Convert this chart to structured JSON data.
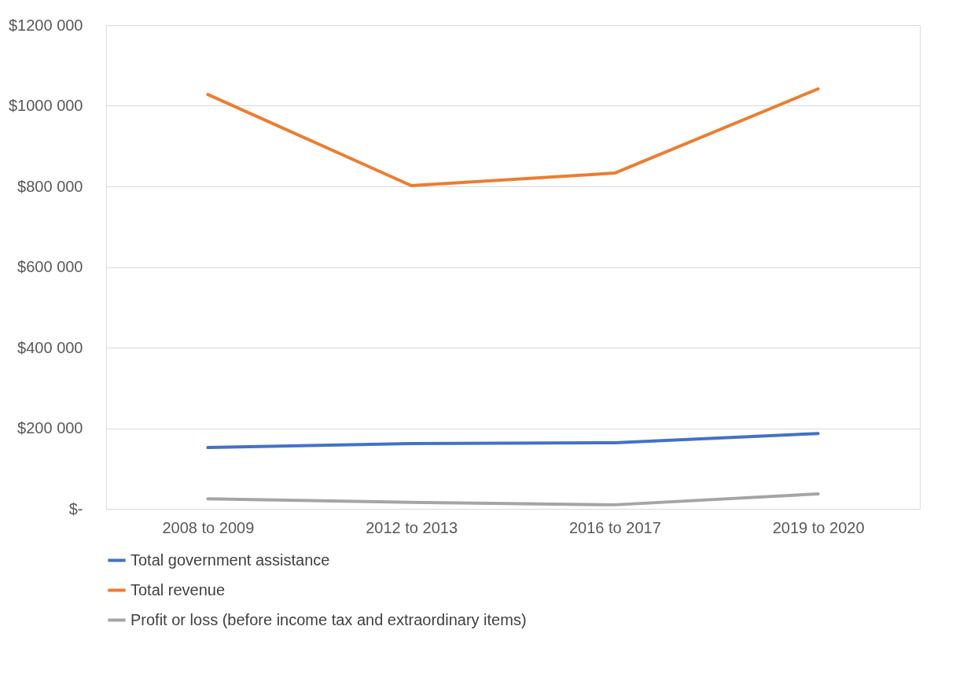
{
  "chart_data": {
    "type": "line",
    "categories": [
      "2008 to 2009",
      "2012 to 2013",
      "2016 to 2017",
      "2019 to 2020"
    ],
    "series": [
      {
        "name": "Total government assistance",
        "color": "#4472c4",
        "values": [
          152000,
          162000,
          164000,
          187000
        ]
      },
      {
        "name": "Total revenue",
        "color": "#ed7d31",
        "values": [
          1028000,
          802000,
          833000,
          1042000
        ]
      },
      {
        "name": "Profit or loss (before income tax and extraordinary items)",
        "color": "#a5a5a5",
        "values": [
          25000,
          16000,
          10000,
          37000
        ]
      }
    ],
    "ylim": [
      0,
      1200000
    ],
    "yticks": [
      {
        "value": 0,
        "label": "$-"
      },
      {
        "value": 200000,
        "label": "$200 000"
      },
      {
        "value": 400000,
        "label": "$400 000"
      },
      {
        "value": 600000,
        "label": "$600 000"
      },
      {
        "value": 800000,
        "label": "$800 000"
      },
      {
        "value": 1000000,
        "label": "$1000 000"
      },
      {
        "value": 1200000,
        "label": "$1200 000"
      }
    ],
    "grid": "y",
    "legend": "bottom",
    "marker": "none",
    "line_style": "solid"
  }
}
